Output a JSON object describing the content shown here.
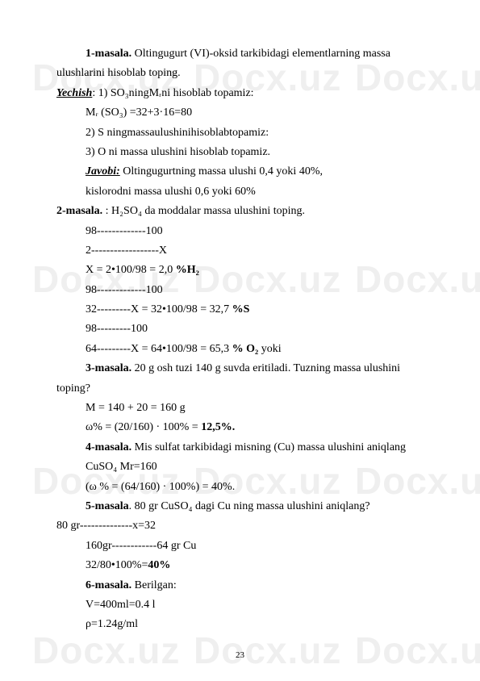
{
  "watermark": "Docx.uz",
  "page_number": "23",
  "lines": {
    "l1a": "1-masala.",
    "l1b": " Oltingugurt (VI)-oksid tarkibidagi elementlarning massa",
    "l2": "ulushlarini hisoblab toping.",
    "l3a": "Yechish",
    "l3b": ": 1) SO₃ningMᵣni hisoblab topamiz:",
    "l4": "Mᵣ (SO₃) =32+3·16=80",
    "l5": "2) S ningmassaulushinihisoblabtopamiz:",
    "l6": "3) O ni massa ulushini hisoblab topamiz.",
    "l7a": "Javobi:",
    "l7b": " Oltingugurtning massa ulushi 0,4 yoki 40%,",
    "l8": "kislorodni massa ulushi 0,6 yoki 60%",
    "l9a": "2-masala.",
    "l9b": " : H₂SO₄ da moddalar massa ulushini toping.",
    "l10": "98-------------100",
    "l11": "2------------------X",
    "l12a": "X = 2•100/98 = 2,0 ",
    "l12b": "%H₂",
    "l13": "98-------------100",
    "l14a": "32---------X = 32•100/98 = 32,7 ",
    "l14b": "%S",
    "l15": "98---------100",
    "l16a": "64---------X = 64•100/98 = 65,3 ",
    "l16b": "% O₂",
    "l16c": "  yoki",
    "l17a": "3-masala.",
    "l17b": " 20 g osh tuzi 140 g suvda eritiladi. Tuzning massa ulushini",
    "l18": "toping?",
    "l19": "M = 140 + 20 = 160 g",
    "l20a": "ω% = (20/160) · 100% = ",
    "l20b": "12,5%.",
    "l21a": "4-masala.",
    "l21b": " Mis sulfat tarkibidagi misning (Cu) massa ulushini aniqlang",
    "l22": "CuSO₄ Mr=160",
    "l23": "(ω % = (64/160) · 100%) = 40%.",
    "l24a": "5-masala",
    "l24b": ". 80 gr CuSO₄ dagi Cu ning massa ulushini aniqlang?",
    "l25": "80 gr--------------x=32",
    "l26": "160gr------------64 gr Cu",
    "l27a": "32/80•100%=",
    "l27b": "40%",
    "l28a": "6-masala.",
    "l28b": " Berilgan:",
    "l29": "V=400ml=0.4 l",
    "l30": "ρ=1.24g/ml"
  }
}
